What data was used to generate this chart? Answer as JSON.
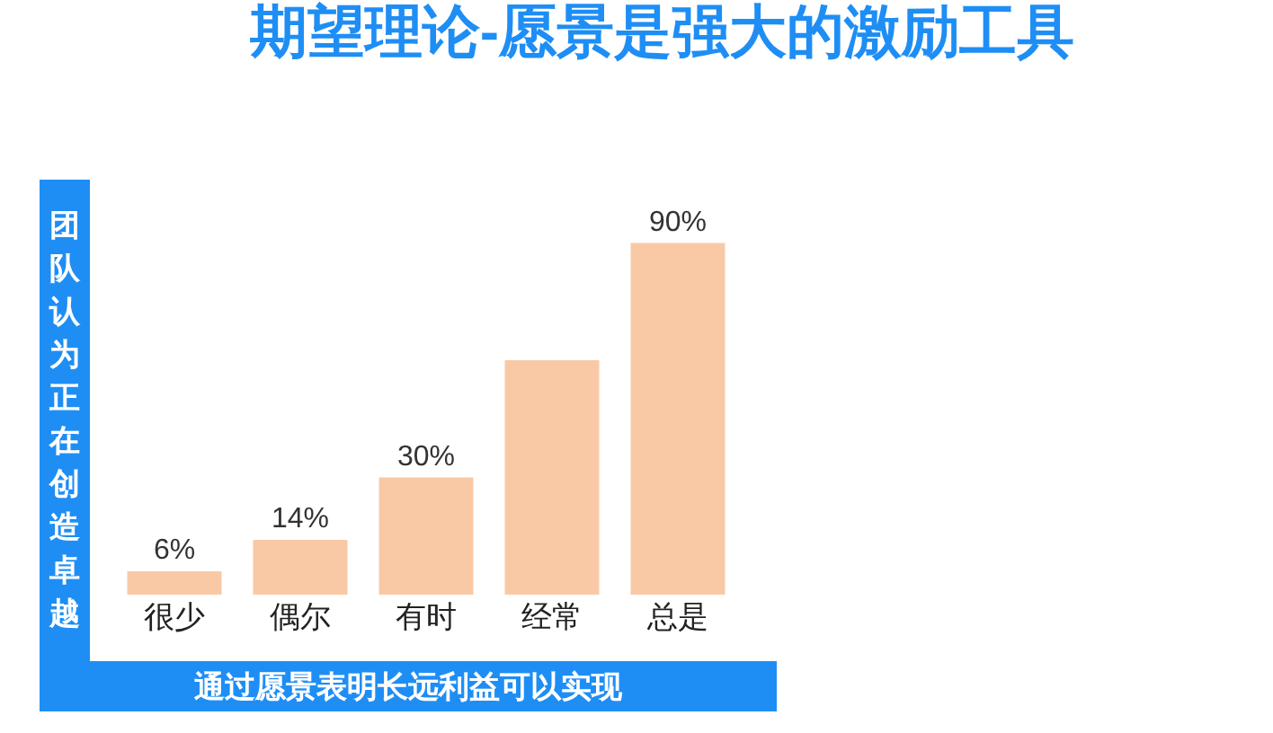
{
  "chart_data": {
    "type": "bar",
    "title": "期望理论-愿景是强大的激励工具",
    "xlabel": "通过愿景表明长远利益可以实现",
    "ylabel": "团队认为正在创造卓越",
    "categories": [
      "很少",
      "偶尔",
      "有时",
      "经常",
      "总是"
    ],
    "values": [
      6,
      14,
      30,
      60,
      90
    ],
    "value_labels": [
      "6%",
      "14%",
      "30%",
      null,
      "90%"
    ],
    "color": "#f9c9a6",
    "grid": false,
    "legend": false
  }
}
